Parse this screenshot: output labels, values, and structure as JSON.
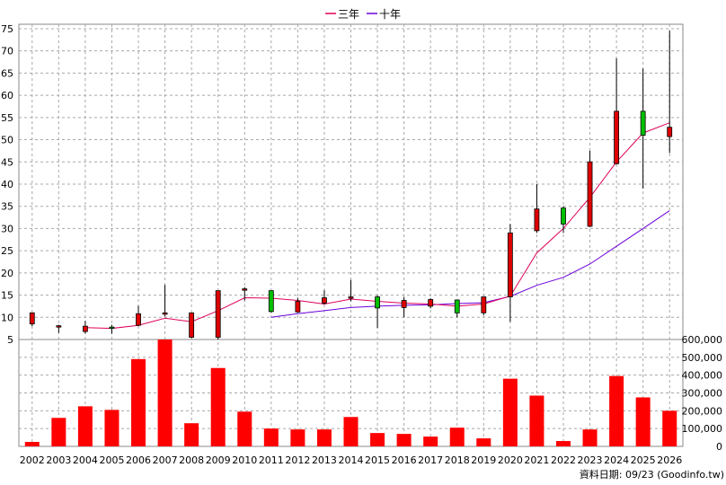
{
  "chart_data": [
    {
      "type": "candlestick",
      "legend": [
        {
          "name": "三年",
          "color": "#e0005a"
        },
        {
          "name": "十年",
          "color": "#6a00d8"
        }
      ],
      "legend_position": "top-center",
      "categories": [
        "2002",
        "2003",
        "2004",
        "2005",
        "2006",
        "2007",
        "2008",
        "2009",
        "2010",
        "2011",
        "2012",
        "2013",
        "2014",
        "2015",
        "2016",
        "2017",
        "2018",
        "2019",
        "2020",
        "2021",
        "2022",
        "2023",
        "2024",
        "2025",
        "2026"
      ],
      "ylim": [
        5,
        76
      ],
      "yticks": [
        "5",
        "10",
        "15",
        "20",
        "25",
        "30",
        "35",
        "40",
        "45",
        "50",
        "55",
        "60",
        "65",
        "70",
        "75"
      ],
      "grid": true,
      "candles": [
        {
          "open": 8.5,
          "close": 11.0,
          "high": 11.0,
          "low": 8.0
        },
        {
          "open": 8.0,
          "close": 8.1,
          "high": 8.3,
          "low": 6.5
        },
        {
          "open": 6.8,
          "close": 8.0,
          "high": 9.2,
          "low": 6.3
        },
        {
          "open": 7.8,
          "close": 7.6,
          "high": 8.3,
          "low": 6.3
        },
        {
          "open": 8.2,
          "close": 10.8,
          "high": 12.6,
          "low": 8.0
        },
        {
          "open": 10.8,
          "close": 11.0,
          "high": 17.3,
          "low": 10.2
        },
        {
          "open": 5.5,
          "close": 11.0,
          "high": 11.0,
          "low": 5.3
        },
        {
          "open": 5.5,
          "close": 16.0,
          "high": 16.0,
          "low": 5.0
        },
        {
          "open": 16.2,
          "close": 16.4,
          "high": 16.8,
          "low": 13.8
        },
        {
          "open": 16.0,
          "close": 11.3,
          "high": 16.0,
          "low": 11.0
        },
        {
          "open": 11.2,
          "close": 13.6,
          "high": 14.4,
          "low": 11.0
        },
        {
          "open": 13.2,
          "close": 14.4,
          "high": 16.1,
          "low": 12.9
        },
        {
          "open": 14.3,
          "close": 14.6,
          "high": 18.4,
          "low": 13.6
        },
        {
          "open": 14.6,
          "close": 12.1,
          "high": 15.0,
          "low": 7.6
        },
        {
          "open": 12.2,
          "close": 13.8,
          "high": 14.6,
          "low": 10.0
        },
        {
          "open": 12.5,
          "close": 14.0,
          "high": 14.3,
          "low": 12.0
        },
        {
          "open": 13.9,
          "close": 11.0,
          "high": 14.0,
          "low": 10.0
        },
        {
          "open": 11.0,
          "close": 14.6,
          "high": 14.6,
          "low": 10.5
        },
        {
          "open": 14.6,
          "close": 29.0,
          "high": 31.0,
          "low": 9.0
        },
        {
          "open": 29.5,
          "close": 34.4,
          "high": 40.0,
          "low": 29.0
        },
        {
          "open": 34.6,
          "close": 31.0,
          "high": 35.0,
          "low": 29.0
        },
        {
          "open": 30.5,
          "close": 45.0,
          "high": 47.5,
          "low": 30.3
        },
        {
          "open": 44.6,
          "close": 56.4,
          "high": 68.3,
          "low": 44.4
        },
        {
          "open": 56.4,
          "close": 51.0,
          "high": 66.0,
          "low": 39.0
        },
        {
          "open": 50.7,
          "close": 52.8,
          "high": 74.5,
          "low": 47.0
        }
      ],
      "ma3": [
        null,
        null,
        7.7,
        7.5,
        8.2,
        9.8,
        9.0,
        11.5,
        14.4,
        14.3,
        13.8,
        13.0,
        14.1,
        13.6,
        13.2,
        13.0,
        12.5,
        13.0,
        14.8,
        24.5,
        30.0,
        37.0,
        45.0,
        51.5,
        53.8
      ],
      "ma10": [
        null,
        null,
        null,
        null,
        null,
        null,
        null,
        null,
        null,
        10.0,
        10.8,
        11.5,
        12.2,
        12.5,
        12.7,
        12.8,
        13.1,
        13.3,
        14.7,
        17.2,
        19.0,
        22.0,
        26.0,
        30.0,
        34.0
      ]
    },
    {
      "type": "bar",
      "categories": [
        "2002",
        "2003",
        "2004",
        "2005",
        "2006",
        "2007",
        "2008",
        "2009",
        "2010",
        "2011",
        "2012",
        "2013",
        "2014",
        "2015",
        "2016",
        "2017",
        "2018",
        "2019",
        "2020",
        "2021",
        "2022",
        "2023",
        "2024",
        "2025",
        "2026"
      ],
      "values": [
        25000,
        160000,
        225000,
        205000,
        490000,
        600000,
        130000,
        440000,
        195000,
        100000,
        95000,
        95000,
        165000,
        75000,
        70000,
        55000,
        105000,
        45000,
        380000,
        285000,
        30000,
        95000,
        395000,
        275000,
        200000
      ],
      "ylim": [
        0,
        600000
      ],
      "yticks": [
        "0",
        "100,000",
        "200,000",
        "300,000",
        "400,000",
        "500,000",
        "600,000"
      ],
      "grid": true,
      "color": "#ff0000"
    }
  ],
  "footer": {
    "source": "資料日期: 09/23 (Goodinfo.tw)"
  }
}
